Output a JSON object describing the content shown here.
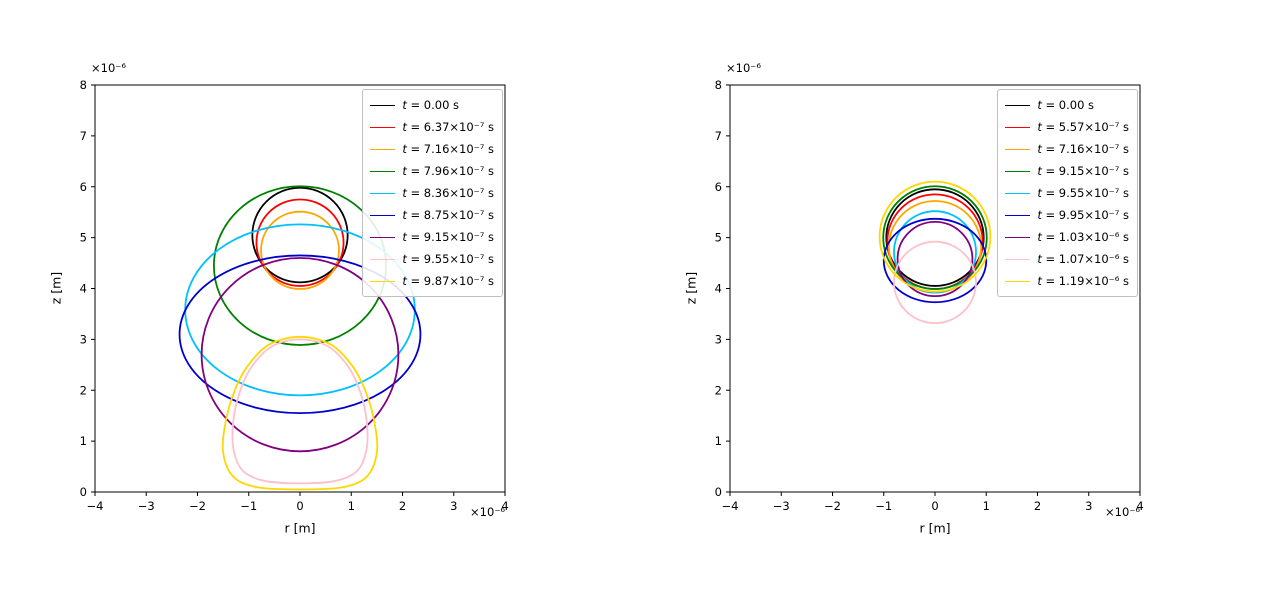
{
  "page": {
    "background": "#ffffff"
  },
  "chart_data": [
    {
      "type": "line",
      "id": "left-bubble-contours",
      "title": "",
      "xlabel": "r [m]",
      "ylabel": "z [m]",
      "x_offset_label": "×10⁻⁶",
      "y_offset_label": "×10⁻⁶",
      "xlim": [
        -4,
        4
      ],
      "ylim": [
        0,
        8
      ],
      "xticks": [
        -4,
        -3,
        -2,
        -1,
        0,
        1,
        2,
        3,
        4
      ],
      "yticks": [
        0,
        1,
        2,
        3,
        4,
        5,
        6,
        7,
        8
      ],
      "grid": false,
      "legend_position": "upper right",
      "series": [
        {
          "label": "t = 0.00 s",
          "color": "#000000",
          "shape": {
            "type": "ellipse",
            "cx": 0,
            "cy": 5.05,
            "rx": 0.93,
            "ry": 0.93
          }
        },
        {
          "label": "t = 6.37×10⁻⁷ s",
          "color": "#ff0000",
          "shape": {
            "type": "ellipse",
            "cx": 0,
            "cy": 4.9,
            "rx": 0.85,
            "ry": 0.85
          }
        },
        {
          "label": "t = 7.16×10⁻⁷ s",
          "color": "#ffa500",
          "shape": {
            "type": "ellipse",
            "cx": 0,
            "cy": 4.75,
            "rx": 0.76,
            "ry": 0.76
          }
        },
        {
          "label": "t = 7.96×10⁻⁷ s",
          "color": "#008000",
          "shape": {
            "type": "ellipse",
            "cx": 0,
            "cy": 4.45,
            "rx": 1.68,
            "ry": 1.56
          }
        },
        {
          "label": "t = 8.36×10⁻⁷ s",
          "color": "#00bfff",
          "shape": {
            "type": "ellipse",
            "cx": 0,
            "cy": 3.58,
            "rx": 2.24,
            "ry": 1.68
          }
        },
        {
          "label": "t = 8.75×10⁻⁷ s",
          "color": "#0000cd",
          "shape": {
            "type": "ellipse",
            "cx": 0,
            "cy": 3.1,
            "rx": 2.35,
            "ry": 1.55
          }
        },
        {
          "label": "t = 9.15×10⁻⁷ s",
          "color": "#800080",
          "shape": {
            "type": "ellipse",
            "cx": 0,
            "cy": 2.7,
            "rx": 1.92,
            "ry": 1.9
          }
        },
        {
          "label": "t = 9.55×10⁻⁷ s",
          "color": "#ffc0cb",
          "shape": {
            "type": "outline",
            "points": [
              [
                0,
                3.0
              ],
              [
                0.55,
                2.86
              ],
              [
                0.95,
                2.45
              ],
              [
                1.18,
                1.95
              ],
              [
                1.3,
                1.4
              ],
              [
                1.3,
                0.85
              ],
              [
                1.12,
                0.42
              ],
              [
                0.7,
                0.22
              ],
              [
                0,
                0.17
              ],
              [
                -0.7,
                0.22
              ],
              [
                -1.12,
                0.42
              ],
              [
                -1.3,
                0.85
              ],
              [
                -1.3,
                1.4
              ],
              [
                -1.18,
                1.95
              ],
              [
                -0.95,
                2.45
              ],
              [
                -0.55,
                2.86
              ]
            ]
          }
        },
        {
          "label": "t = 9.87×10⁻⁷ s",
          "color": "#ffd700",
          "shape": {
            "type": "outline",
            "points": [
              [
                0,
                3.05
              ],
              [
                0.6,
                2.9
              ],
              [
                1.02,
                2.48
              ],
              [
                1.28,
                1.98
              ],
              [
                1.45,
                1.38
              ],
              [
                1.5,
                0.78
              ],
              [
                1.3,
                0.3
              ],
              [
                0.82,
                0.09
              ],
              [
                0,
                0.05
              ],
              [
                -0.82,
                0.09
              ],
              [
                -1.3,
                0.3
              ],
              [
                -1.5,
                0.78
              ],
              [
                -1.45,
                1.38
              ],
              [
                -1.28,
                1.98
              ],
              [
                -1.02,
                2.48
              ],
              [
                -0.6,
                2.9
              ]
            ]
          }
        }
      ]
    },
    {
      "type": "line",
      "id": "right-bubble-contours",
      "title": "",
      "xlabel": "r [m]",
      "ylabel": "z [m]",
      "x_offset_label": "×10⁻⁶",
      "y_offset_label": "×10⁻⁶",
      "xlim": [
        -4,
        4
      ],
      "ylim": [
        0,
        8
      ],
      "xticks": [
        -4,
        -3,
        -2,
        -1,
        0,
        1,
        2,
        3,
        4
      ],
      "yticks": [
        0,
        1,
        2,
        3,
        4,
        5,
        6,
        7,
        8
      ],
      "grid": false,
      "legend_position": "upper right",
      "series": [
        {
          "label": "t = 0.00 s",
          "color": "#000000",
          "shape": {
            "type": "ellipse",
            "cx": 0,
            "cy": 5.0,
            "rx": 0.95,
            "ry": 0.95
          }
        },
        {
          "label": "t = 5.57×10⁻⁷ s",
          "color": "#ff0000",
          "shape": {
            "type": "ellipse",
            "cx": 0,
            "cy": 4.92,
            "rx": 0.93,
            "ry": 0.93
          }
        },
        {
          "label": "t = 7.16×10⁻⁷ s",
          "color": "#ffa500",
          "shape": {
            "type": "ellipse",
            "cx": 0,
            "cy": 4.82,
            "rx": 0.9,
            "ry": 0.9
          }
        },
        {
          "label": "t = 9.15×10⁻⁷ s",
          "color": "#008000",
          "shape": {
            "type": "ellipse",
            "cx": 0,
            "cy": 5.0,
            "rx": 1.01,
            "ry": 1.01
          }
        },
        {
          "label": "t = 9.55×10⁻⁷ s",
          "color": "#00bfff",
          "shape": {
            "type": "ellipse",
            "cx": 0,
            "cy": 4.72,
            "rx": 0.8,
            "ry": 0.8
          }
        },
        {
          "label": "t = 9.95×10⁻⁷ s",
          "color": "#0000cd",
          "shape": {
            "type": "ellipse",
            "cx": 0,
            "cy": 4.55,
            "rx": 1.0,
            "ry": 0.82
          }
        },
        {
          "label": "t = 1.03×10⁻⁶ s",
          "color": "#800080",
          "shape": {
            "type": "ellipse",
            "cx": 0,
            "cy": 4.58,
            "rx": 0.73,
            "ry": 0.73
          }
        },
        {
          "label": "t = 1.07×10⁻⁶ s",
          "color": "#ffc0cb",
          "shape": {
            "type": "ellipse",
            "cx": 0,
            "cy": 4.12,
            "rx": 0.8,
            "ry": 0.8
          }
        },
        {
          "label": "t = 1.19×10⁻⁶ s",
          "color": "#ffd700",
          "shape": {
            "type": "ellipse",
            "cx": 0,
            "cy": 5.02,
            "rx": 1.08,
            "ry": 1.08
          }
        }
      ]
    }
  ]
}
